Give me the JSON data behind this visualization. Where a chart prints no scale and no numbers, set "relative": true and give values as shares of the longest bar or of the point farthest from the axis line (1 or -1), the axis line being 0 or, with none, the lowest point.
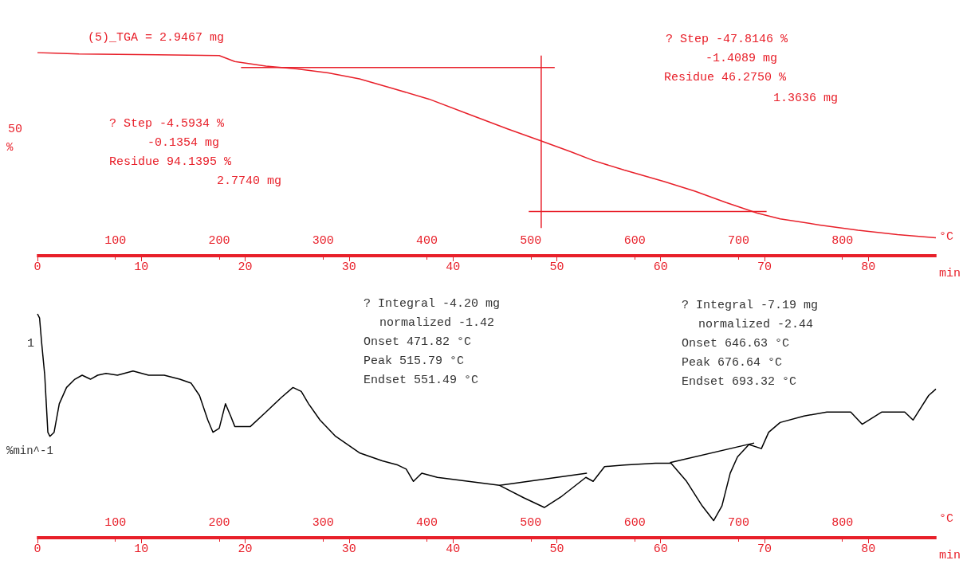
{
  "chart_data": [
    {
      "type": "line",
      "relative": true,
      "xlabel": "°C",
      "ylabel": "%",
      "x2label": "min",
      "xlim": [
        25,
        890
      ],
      "xticks": [
        100,
        200,
        300,
        400,
        500,
        600,
        700,
        800
      ],
      "x2lim": [
        0,
        86.5
      ],
      "x2ticks": [
        0,
        10,
        20,
        30,
        40,
        50,
        60,
        70,
        80
      ],
      "x": [
        25,
        65,
        140,
        200,
        215,
        245,
        275,
        305,
        335,
        365,
        402,
        440,
        478,
        508,
        538,
        560,
        590,
        628,
        658,
        688,
        718,
        740,
        778,
        815,
        853,
        890
      ],
      "series": [
        {
          "color": "#e8202a",
          "values": [
            1,
            0.993,
            0.989,
            0.985,
            0.956,
            0.933,
            0.919,
            0.9,
            0.87,
            0.826,
            0.77,
            0.696,
            0.622,
            0.567,
            0.511,
            0.467,
            0.419,
            0.363,
            0.315,
            0.259,
            0.207,
            0.178,
            0.148,
            0.122,
            0.1,
            0.085
          ]
        },
        {
          "color": "#e8202a",
          "x": [
            221,
            523
          ],
          "values": [
            0.926,
            0.926
          ]
        },
        {
          "color": "#e8202a",
          "x": [
            510,
            510
          ],
          "values": [
            0.985,
            0.133
          ]
        },
        {
          "color": "#e8202a",
          "x": [
            498,
            727
          ],
          "values": [
            0.215,
            0.215
          ]
        }
      ],
      "annotations": [
        "(5)_TGA = 2.9467 mg",
        "? Step -4.5934 %",
        "-0.1354 mg",
        "Residue 94.1395 %",
        "2.7740 mg",
        "? Step -47.8146 %",
        "-1.4089 mg",
        "Residue 46.2750 %",
        "1.3636 mg",
        "50"
      ]
    },
    {
      "type": "line",
      "relative": true,
      "xlabel": "°C",
      "ylabel": "%min^-1",
      "x2label": "min",
      "xlim": [
        25,
        890
      ],
      "xticks": [
        100,
        200,
        300,
        400,
        500,
        600,
        700,
        800
      ],
      "x2lim": [
        0,
        86.5
      ],
      "x2ticks": [
        0,
        10,
        20,
        30,
        40,
        50,
        60,
        70,
        80
      ],
      "x": [
        25,
        27,
        29,
        32,
        35,
        37,
        41,
        46,
        53,
        61,
        68,
        76,
        83,
        91,
        102,
        117,
        132,
        147,
        162,
        173,
        181,
        189,
        194,
        200,
        206,
        211,
        215,
        230,
        245,
        260,
        271,
        279,
        286,
        297,
        312,
        335,
        357,
        372,
        380,
        387,
        395,
        410,
        440,
        470,
        493,
        513,
        530,
        553,
        560,
        571,
        590,
        620,
        635,
        650,
        665,
        676,
        684,
        692,
        699,
        710,
        722,
        729,
        740,
        763,
        785,
        808,
        819,
        838,
        860,
        868,
        883,
        890
      ],
      "series": [
        {
          "color": "#000000",
          "values": [
            1,
            0.982,
            0.872,
            0.725,
            0.469,
            0.451,
            0.469,
            0.597,
            0.67,
            0.707,
            0.725,
            0.707,
            0.725,
            0.733,
            0.725,
            0.744,
            0.725,
            0.725,
            0.707,
            0.689,
            0.634,
            0.524,
            0.469,
            0.487,
            0.597,
            0.542,
            0.495,
            0.495,
            0.56,
            0.626,
            0.67,
            0.652,
            0.597,
            0.524,
            0.451,
            0.377,
            0.341,
            0.322,
            0.304,
            0.249,
            0.286,
            0.267,
            0.249,
            0.231,
            0.176,
            0.132,
            0.183,
            0.267,
            0.249,
            0.315,
            0.322,
            0.33,
            0.33,
            0.249,
            0.139,
            0.073,
            0.139,
            0.286,
            0.359,
            0.414,
            0.396,
            0.469,
            0.513,
            0.542,
            0.56,
            0.56,
            0.505,
            0.56,
            0.56,
            0.524,
            0.634,
            0.663
          ]
        },
        {
          "color": "#000000",
          "x": [
            470,
            554
          ],
          "values": [
            0.231,
            0.286
          ]
        },
        {
          "color": "#000000",
          "x": [
            634,
            715
          ],
          "values": [
            0.333,
            0.421
          ]
        }
      ],
      "annotations": [
        "? Integral -4.20 mg",
        "normalized -1.42",
        "Onset 471.82 °C",
        "Peak 515.79 °C",
        "Endset 551.49 °C",
        "? Integral -7.19 mg",
        "normalized -2.44",
        "Onset 646.63 °C",
        "Peak 676.64 °C",
        "Endset 693.32 °C",
        "1"
      ]
    }
  ]
}
